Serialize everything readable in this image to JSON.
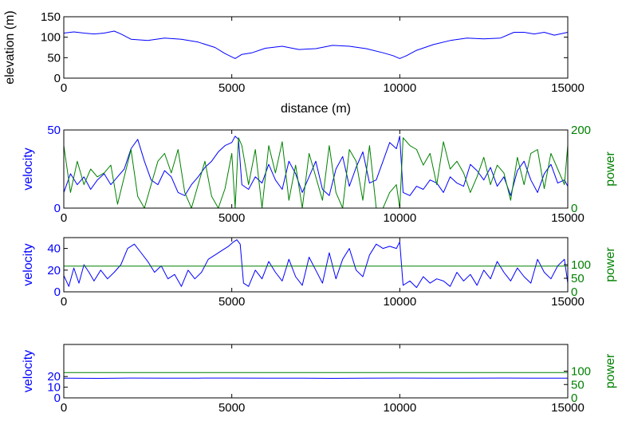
{
  "colors": {
    "velocity": "#0000ff",
    "power": "#008000",
    "elevation": "#0000ff",
    "axis": "#000000"
  },
  "chart_data": [
    {
      "type": "line",
      "xlabel": "distance (m)",
      "ylabel": "elevation (m)",
      "xlim": [
        0,
        15000
      ],
      "ylim": [
        0,
        150
      ],
      "xticks": [
        0,
        5000,
        10000,
        15000
      ],
      "yticks": [
        0,
        50,
        100,
        150
      ],
      "grid": false,
      "series": [
        {
          "x": [
            0,
            300,
            600,
            900,
            1200,
            1500,
            1700,
            2000,
            2500,
            3000,
            3500,
            4000,
            4500,
            4800,
            5100,
            5300,
            5600,
            6000,
            6500,
            7000,
            7500,
            8000,
            8500,
            9000,
            9500,
            9800,
            10000,
            10200,
            10500,
            11000,
            11500,
            12000,
            12500,
            13000,
            13400,
            13700,
            14000,
            14300,
            14600,
            15000
          ],
          "values": [
            110,
            113,
            110,
            108,
            110,
            115,
            108,
            95,
            92,
            98,
            95,
            88,
            75,
            60,
            48,
            58,
            62,
            73,
            78,
            70,
            72,
            80,
            78,
            72,
            62,
            55,
            48,
            55,
            68,
            82,
            92,
            98,
            96,
            98,
            112,
            112,
            108,
            112,
            105,
            112
          ]
        }
      ]
    },
    {
      "type": "line",
      "ylabel": "velocity",
      "ylabel_right": "power",
      "xlim": [
        0,
        15000
      ],
      "ylim": [
        0,
        50
      ],
      "ylim_right": [
        0,
        200
      ],
      "xticks": [
        0,
        5000,
        10000,
        15000
      ],
      "yticks": [
        0,
        50
      ],
      "yticks_right": [
        0,
        200
      ],
      "grid": false,
      "series": [
        {
          "axis": "left",
          "x": [
            0,
            200,
            400,
            600,
            800,
            1000,
            1200,
            1400,
            1600,
            1800,
            2000,
            2200,
            2400,
            2600,
            2800,
            3000,
            3200,
            3400,
            3600,
            3800,
            4000,
            4200,
            4400,
            4600,
            4800,
            5000,
            5100,
            5200,
            5300,
            5500,
            5700,
            5900,
            6100,
            6300,
            6500,
            6700,
            6900,
            7100,
            7300,
            7500,
            7700,
            7900,
            8100,
            8300,
            8500,
            8700,
            8900,
            9100,
            9300,
            9500,
            9700,
            9900,
            10000,
            10100,
            10300,
            10500,
            10700,
            10900,
            11100,
            11300,
            11500,
            11700,
            11900,
            12100,
            12300,
            12500,
            12700,
            12900,
            13100,
            13300,
            13500,
            13700,
            13900,
            14100,
            14300,
            14500,
            14700,
            14900,
            15000
          ],
          "values": [
            10,
            22,
            15,
            20,
            12,
            18,
            22,
            15,
            20,
            25,
            38,
            44,
            30,
            18,
            15,
            24,
            20,
            10,
            8,
            15,
            20,
            26,
            30,
            36,
            40,
            42,
            46,
            44,
            15,
            12,
            20,
            16,
            28,
            18,
            12,
            30,
            22,
            10,
            20,
            30,
            12,
            8,
            25,
            33,
            14,
            26,
            36,
            16,
            18,
            30,
            42,
            38,
            46,
            10,
            8,
            14,
            12,
            18,
            16,
            10,
            20,
            16,
            14,
            28,
            24,
            18,
            26,
            14,
            20,
            8,
            24,
            30,
            18,
            10,
            22,
            28,
            16,
            18,
            14
          ]
        },
        {
          "axis": "right",
          "x": [
            0,
            200,
            400,
            600,
            800,
            1000,
            1200,
            1400,
            1600,
            1800,
            2000,
            2200,
            2400,
            2600,
            2800,
            3000,
            3200,
            3400,
            3600,
            3800,
            4000,
            4200,
            4400,
            4600,
            4800,
            5000,
            5100,
            5200,
            5300,
            5500,
            5700,
            5900,
            6100,
            6300,
            6500,
            6700,
            6900,
            7100,
            7300,
            7500,
            7700,
            7900,
            8100,
            8300,
            8500,
            8700,
            8900,
            9100,
            9300,
            9500,
            9700,
            9900,
            10000,
            10100,
            10300,
            10500,
            10700,
            10900,
            11100,
            11300,
            11500,
            11700,
            11900,
            12100,
            12300,
            12500,
            12700,
            12900,
            13100,
            13300,
            13500,
            13700,
            13900,
            14100,
            14300,
            14500,
            14700,
            14900,
            15000
          ],
          "values": [
            160,
            40,
            120,
            60,
            100,
            80,
            90,
            110,
            10,
            80,
            150,
            30,
            0,
            60,
            120,
            140,
            90,
            150,
            40,
            0,
            60,
            120,
            30,
            0,
            50,
            140,
            0,
            180,
            160,
            60,
            150,
            0,
            160,
            90,
            170,
            20,
            110,
            0,
            140,
            80,
            20,
            160,
            40,
            0,
            150,
            120,
            20,
            160,
            0,
            0,
            40,
            60,
            0,
            180,
            160,
            150,
            110,
            140,
            60,
            170,
            100,
            120,
            90,
            40,
            80,
            130,
            60,
            110,
            90,
            20,
            130,
            60,
            140,
            150,
            50,
            140,
            100,
            60,
            160
          ]
        }
      ]
    },
    {
      "type": "line",
      "ylabel": "velocity",
      "ylabel_right": "power",
      "xlim": [
        0,
        15000
      ],
      "ylim": [
        0,
        50
      ],
      "ylim_right": [
        0,
        200
      ],
      "xticks": [
        0,
        5000,
        10000,
        15000
      ],
      "yticks": [
        0,
        20,
        40
      ],
      "yticks_right": [
        0,
        50,
        100
      ],
      "grid": false,
      "series": [
        {
          "axis": "left",
          "x": [
            0,
            150,
            300,
            450,
            600,
            750,
            900,
            1100,
            1300,
            1500,
            1700,
            1900,
            2100,
            2300,
            2500,
            2700,
            2900,
            3100,
            3300,
            3500,
            3700,
            3900,
            4100,
            4300,
            4500,
            4700,
            4900,
            5050,
            5150,
            5250,
            5350,
            5500,
            5700,
            5900,
            6100,
            6300,
            6500,
            6700,
            6900,
            7100,
            7300,
            7500,
            7700,
            7900,
            8100,
            8300,
            8500,
            8700,
            8900,
            9100,
            9300,
            9500,
            9700,
            9900,
            10000,
            10100,
            10300,
            10500,
            10700,
            10900,
            11100,
            11300,
            11500,
            11700,
            11900,
            12100,
            12300,
            12500,
            12700,
            12900,
            13100,
            13300,
            13500,
            13700,
            13900,
            14100,
            14300,
            14500,
            14700,
            14900,
            15000
          ],
          "values": [
            15,
            5,
            22,
            8,
            25,
            18,
            10,
            20,
            12,
            18,
            25,
            40,
            44,
            36,
            28,
            18,
            24,
            12,
            16,
            5,
            20,
            12,
            18,
            30,
            34,
            38,
            42,
            46,
            48,
            44,
            8,
            5,
            20,
            12,
            28,
            18,
            10,
            30,
            14,
            6,
            32,
            20,
            8,
            36,
            12,
            30,
            40,
            20,
            14,
            34,
            44,
            40,
            42,
            40,
            46,
            6,
            10,
            4,
            14,
            8,
            12,
            10,
            5,
            18,
            10,
            16,
            6,
            20,
            12,
            28,
            18,
            10,
            22,
            14,
            8,
            30,
            18,
            12,
            24,
            30,
            8
          ]
        },
        {
          "axis": "right",
          "x": [
            0,
            15000
          ],
          "values": [
            95,
            95
          ]
        }
      ]
    },
    {
      "type": "line",
      "ylabel": "velocity",
      "ylabel_right": "power",
      "xlim": [
        0,
        15000
      ],
      "ylim": [
        0,
        50
      ],
      "ylim_right": [
        0,
        200
      ],
      "xticks": [
        0,
        5000,
        10000,
        15000
      ],
      "yticks": [
        0,
        10,
        20
      ],
      "yticks_right": [
        0,
        50,
        100
      ],
      "grid": false,
      "series": [
        {
          "axis": "left",
          "x": [
            0,
            1000,
            2000,
            3000,
            4000,
            5000,
            6000,
            7000,
            8000,
            9000,
            10000,
            11000,
            12000,
            13000,
            14000,
            15000
          ],
          "values": [
            18.5,
            18.3,
            18.6,
            18.4,
            18.5,
            18.6,
            18.4,
            18.5,
            18.3,
            18.5,
            18.6,
            18.4,
            18.5,
            18.6,
            18.4,
            18.5
          ]
        },
        {
          "axis": "right",
          "x": [
            0,
            15000
          ],
          "values": [
            95,
            95
          ]
        }
      ]
    }
  ]
}
